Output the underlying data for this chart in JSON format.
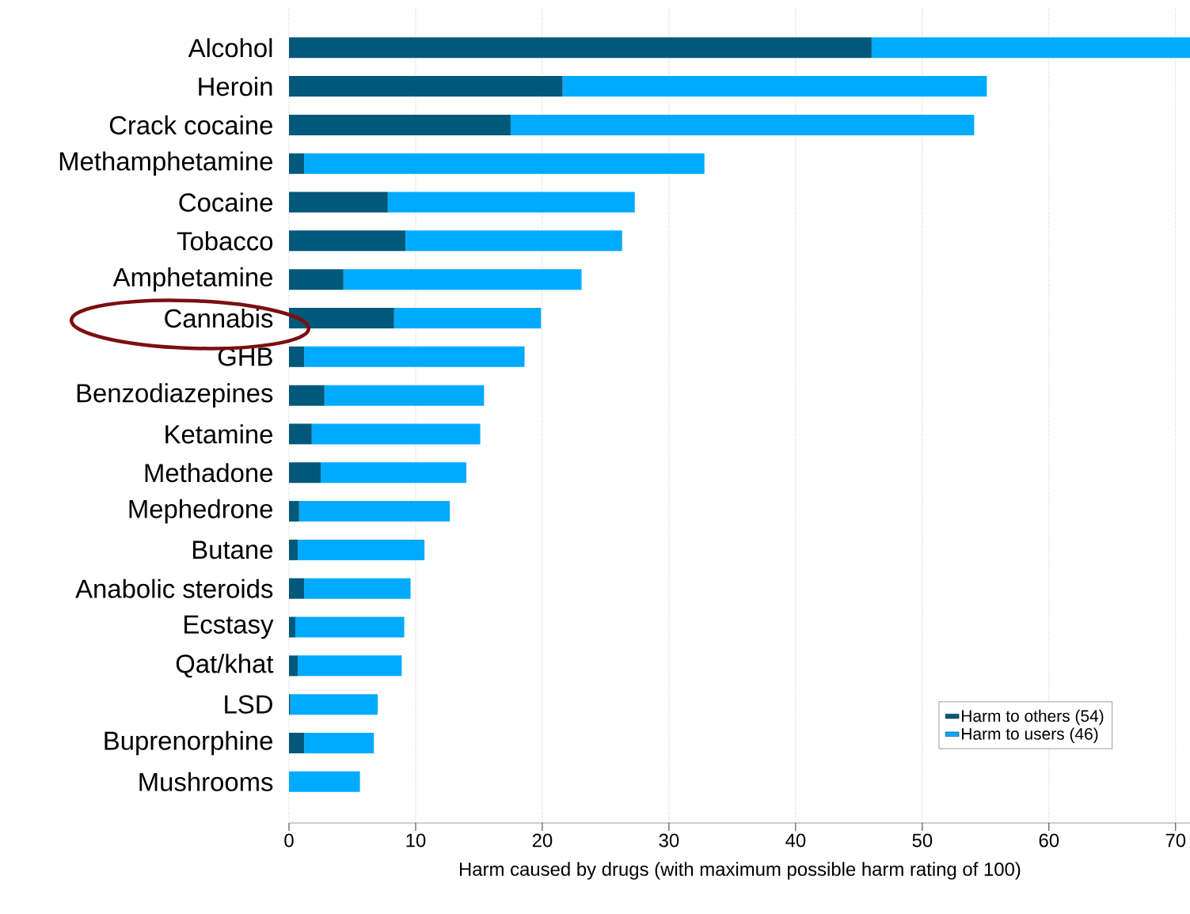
{
  "chart_data": {
    "type": "bar",
    "orientation": "horizontal",
    "stacked": true,
    "xlabel": "Harm caused by drugs (with maximum possible harm rating of 100)",
    "categories": [
      "Alcohol",
      "Heroin",
      "Crack cocaine",
      "Methamphetamine",
      "Cocaine",
      "Tobacco",
      "Amphetamine",
      "Cannabis",
      "GHB",
      "Benzodiazepines",
      "Ketamine",
      "Methadone",
      "Mephedrone",
      "Butane",
      "Anabolic steroids",
      "Ecstasy",
      "Qat/khat",
      "LSD",
      "Buprenorphine",
      "Mushrooms"
    ],
    "series": [
      {
        "name": "Harm to others (54)",
        "color": "#00587a",
        "values": [
          46,
          21.6,
          17.5,
          1.2,
          7.8,
          9.2,
          4.3,
          8.3,
          1.2,
          2.8,
          1.8,
          2.5,
          0.8,
          0.7,
          1.2,
          0.5,
          0.7,
          0.1,
          1.2,
          0
        ]
      },
      {
        "name": "Harm to users (46)",
        "color": "#00aaff",
        "values": [
          25.2,
          33.5,
          36.6,
          31.6,
          19.5,
          17.1,
          18.8,
          11.6,
          17.4,
          12.6,
          13.3,
          11.5,
          11.9,
          10,
          8.4,
          8.6,
          8.2,
          6.9,
          5.5,
          5.6
        ]
      }
    ],
    "xlim": [
      0,
      71.2
    ],
    "xticks": [
      0,
      10,
      20,
      30,
      40,
      50,
      60,
      70
    ],
    "grid": "x",
    "legend": "bottom right"
  }
}
